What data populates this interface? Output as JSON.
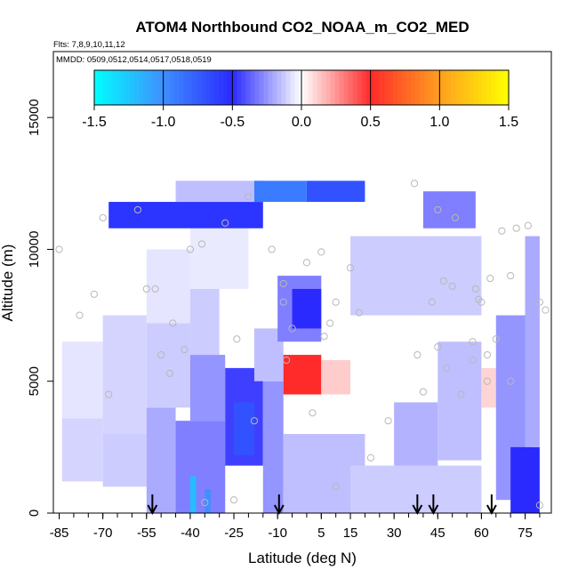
{
  "chart_data": {
    "type": "heatmap",
    "title": "ATOM4 Northbound CO2_NOAA_m_CO2_MED",
    "flights_note": "Flts: 7,8,9,10,11,12",
    "dates_note": "MMDD: 0509,0512,0514,0517,0518,0519",
    "xlabel": "Latitude (deg N)",
    "ylabel": "Altitude (m)",
    "xlim": [
      -87,
      84
    ],
    "ylim": [
      0,
      17500
    ],
    "x_ticks": [
      -85,
      -70,
      -55,
      -40,
      -25,
      -10,
      5,
      15,
      30,
      45,
      60,
      75
    ],
    "x_tick_labels": [
      "-85",
      "-70",
      "-55",
      "-40",
      "-25",
      "-10",
      "5",
      "15",
      "30",
      "45",
      "60",
      "75"
    ],
    "y_ticks": [
      0,
      5000,
      10000,
      15000
    ],
    "y_tick_labels": [
      "0",
      "5000",
      "10000",
      "15000"
    ],
    "colorbar": {
      "range": [
        -1.5,
        1.5
      ],
      "ticks": [
        -1.5,
        -1.0,
        -0.5,
        0.0,
        0.5,
        1.0,
        1.5
      ],
      "tick_labels": [
        "-1.5",
        "-1.0",
        "-0.5",
        "0.0",
        "0.5",
        "1.0",
        "1.5"
      ],
      "colors": [
        "#00ffff",
        "#3f8fff",
        "#2a2aff",
        "#ffffff",
        "#ff2a2a",
        "#ff9f1f",
        "#ffff00"
      ]
    },
    "cells": [
      {
        "lat": [
          -84,
          -70
        ],
        "alt": [
          1200,
          3600
        ],
        "v": -0.1
      },
      {
        "lat": [
          -84,
          -70
        ],
        "alt": [
          3600,
          6500
        ],
        "v": -0.06
      },
      {
        "lat": [
          -70,
          -55
        ],
        "alt": [
          1000,
          3000
        ],
        "v": -0.12
      },
      {
        "lat": [
          -70,
          -55
        ],
        "alt": [
          3000,
          7500
        ],
        "v": -0.1
      },
      {
        "lat": [
          -55,
          -45
        ],
        "alt": [
          0,
          4000
        ],
        "v": -0.2
      },
      {
        "lat": [
          -55,
          -40
        ],
        "alt": [
          4000,
          7200
        ],
        "v": -0.12
      },
      {
        "lat": [
          -55,
          -40
        ],
        "alt": [
          7200,
          10000
        ],
        "v": -0.06
      },
      {
        "lat": [
          -45,
          -28
        ],
        "alt": [
          0,
          3500
        ],
        "v": -0.3
      },
      {
        "lat": [
          -40,
          -28
        ],
        "alt": [
          3500,
          6000
        ],
        "v": -0.25
      },
      {
        "lat": [
          -40,
          -30
        ],
        "alt": [
          6000,
          8500
        ],
        "v": -0.12
      },
      {
        "lat": [
          -40,
          -20
        ],
        "alt": [
          8500,
          10800
        ],
        "v": -0.05
      },
      {
        "lat": [
          -28,
          -15
        ],
        "alt": [
          1800,
          5500
        ],
        "v": -0.45
      },
      {
        "lat": [
          -25,
          -18
        ],
        "alt": [
          2200,
          4200
        ],
        "v": -0.7
      },
      {
        "lat": [
          -15,
          -8
        ],
        "alt": [
          0,
          5000
        ],
        "v": -0.25
      },
      {
        "lat": [
          -18,
          -8
        ],
        "alt": [
          5000,
          7000
        ],
        "v": -0.15
      },
      {
        "lat": [
          -10,
          5
        ],
        "alt": [
          6500,
          9000
        ],
        "v": -0.3
      },
      {
        "lat": [
          -5,
          5
        ],
        "alt": [
          7000,
          8500
        ],
        "v": -0.5
      },
      {
        "lat": [
          -8,
          5
        ],
        "alt": [
          4500,
          6000
        ],
        "v": 0.5
      },
      {
        "lat": [
          5,
          15
        ],
        "alt": [
          4500,
          5800
        ],
        "v": 0.12
      },
      {
        "lat": [
          -8,
          20
        ],
        "alt": [
          0,
          3000
        ],
        "v": -0.15
      },
      {
        "lat": [
          15,
          60
        ],
        "alt": [
          0,
          1800
        ],
        "v": -0.12
      },
      {
        "lat": [
          30,
          45
        ],
        "alt": [
          1800,
          4200
        ],
        "v": -0.18
      },
      {
        "lat": [
          45,
          60
        ],
        "alt": [
          2000,
          6500
        ],
        "v": -0.15
      },
      {
        "lat": [
          60,
          68
        ],
        "alt": [
          4000,
          5500
        ],
        "v": 0.1
      },
      {
        "lat": [
          65,
          78
        ],
        "alt": [
          500,
          7500
        ],
        "v": -0.25
      },
      {
        "lat": [
          70,
          80
        ],
        "alt": [
          0,
          2500
        ],
        "v": -0.5
      },
      {
        "lat": [
          75,
          80
        ],
        "alt": [
          2500,
          10500
        ],
        "v": -0.2
      },
      {
        "lat": [
          15,
          60
        ],
        "alt": [
          7500,
          10500
        ],
        "v": -0.12
      },
      {
        "lat": [
          40,
          58
        ],
        "alt": [
          10800,
          12200
        ],
        "v": -0.3
      },
      {
        "lat": [
          -68,
          -15
        ],
        "alt": [
          10800,
          11800
        ],
        "v": -0.55
      },
      {
        "lat": [
          -45,
          -15
        ],
        "alt": [
          11800,
          12600
        ],
        "v": -0.15
      },
      {
        "lat": [
          -18,
          0
        ],
        "alt": [
          11800,
          12600
        ],
        "v": -0.9
      },
      {
        "lat": [
          0,
          20
        ],
        "alt": [
          11800,
          12600
        ],
        "v": -0.7
      },
      {
        "lat": [
          -40,
          -38
        ],
        "alt": [
          0,
          1400
        ],
        "v": -1.2
      },
      {
        "lat": [
          -35,
          -33
        ],
        "alt": [
          0,
          900
        ],
        "v": -1.0
      }
    ],
    "obs_points": [
      {
        "lat": -85,
        "alt": 10000
      },
      {
        "lat": -78,
        "alt": 7500
      },
      {
        "lat": -73,
        "alt": 8300
      },
      {
        "lat": -70,
        "alt": 11200
      },
      {
        "lat": -68,
        "alt": 4500
      },
      {
        "lat": -58,
        "alt": 11500
      },
      {
        "lat": -55,
        "alt": 8500
      },
      {
        "lat": -52,
        "alt": 8500
      },
      {
        "lat": -50,
        "alt": 6000
      },
      {
        "lat": -47,
        "alt": 5300
      },
      {
        "lat": -46,
        "alt": 7200
      },
      {
        "lat": -42,
        "alt": 6200
      },
      {
        "lat": -40,
        "alt": 10000
      },
      {
        "lat": -36,
        "alt": 10200
      },
      {
        "lat": -28,
        "alt": 11000
      },
      {
        "lat": -24,
        "alt": 6600
      },
      {
        "lat": -20,
        "alt": 12000
      },
      {
        "lat": -18,
        "alt": 3500
      },
      {
        "lat": -12,
        "alt": 10000
      },
      {
        "lat": -8,
        "alt": 8700
      },
      {
        "lat": -8,
        "alt": 8000
      },
      {
        "lat": -7,
        "alt": 5800
      },
      {
        "lat": -5,
        "alt": 7000
      },
      {
        "lat": 0,
        "alt": 9500
      },
      {
        "lat": 2,
        "alt": 3800
      },
      {
        "lat": 5,
        "alt": 9900
      },
      {
        "lat": 6,
        "alt": 6700
      },
      {
        "lat": 8,
        "alt": 7200
      },
      {
        "lat": 10,
        "alt": 8000
      },
      {
        "lat": 10,
        "alt": 1000
      },
      {
        "lat": 15,
        "alt": 9300
      },
      {
        "lat": 18,
        "alt": 7600
      },
      {
        "lat": 22,
        "alt": 2100
      },
      {
        "lat": 28,
        "alt": 3500
      },
      {
        "lat": 37,
        "alt": 12500
      },
      {
        "lat": 38,
        "alt": 6000
      },
      {
        "lat": 40,
        "alt": 4600
      },
      {
        "lat": 43,
        "alt": 8000
      },
      {
        "lat": 45,
        "alt": 6300
      },
      {
        "lat": 45,
        "alt": 11500
      },
      {
        "lat": 47,
        "alt": 8800
      },
      {
        "lat": 48,
        "alt": 5500
      },
      {
        "lat": 50,
        "alt": 8600
      },
      {
        "lat": 51,
        "alt": 11200
      },
      {
        "lat": 53,
        "alt": 4500
      },
      {
        "lat": 57,
        "alt": 6500
      },
      {
        "lat": 57,
        "alt": 5800
      },
      {
        "lat": 58,
        "alt": 8500
      },
      {
        "lat": 59,
        "alt": 8100
      },
      {
        "lat": 60,
        "alt": 8000
      },
      {
        "lat": 62,
        "alt": 5000
      },
      {
        "lat": 62,
        "alt": 6000
      },
      {
        "lat": 63,
        "alt": 8900
      },
      {
        "lat": 65,
        "alt": 6600
      },
      {
        "lat": 67,
        "alt": 10700
      },
      {
        "lat": 70,
        "alt": 9000
      },
      {
        "lat": 70,
        "alt": 5000
      },
      {
        "lat": 72,
        "alt": 10800
      },
      {
        "lat": 76,
        "alt": 10900
      },
      {
        "lat": 80,
        "alt": 8000
      },
      {
        "lat": 82,
        "alt": 7700
      },
      {
        "lat": 80,
        "alt": 300
      },
      {
        "lat": -25,
        "alt": 500
      },
      {
        "lat": -35,
        "alt": 400
      }
    ],
    "arrows": [
      -53,
      -9.5,
      38,
      43.5,
      63.5
    ]
  }
}
